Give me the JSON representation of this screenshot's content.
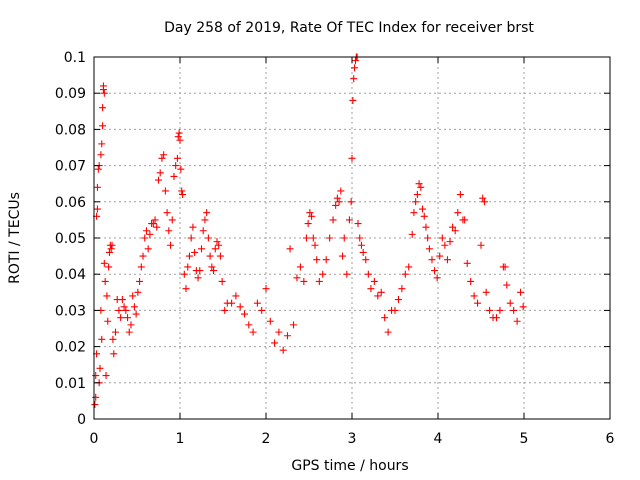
{
  "chart_data": {
    "type": "scatter",
    "title": "Day 258 of 2019, Rate Of TEC Index for receiver brst",
    "xlabel": "GPS time / hours",
    "ylabel": "ROTI / TECUs",
    "xlim": [
      0,
      6
    ],
    "ylim": [
      0,
      0.1
    ],
    "x_ticks": [
      "0",
      "1",
      "2",
      "3",
      "4",
      "5",
      "6"
    ],
    "y_ticks": [
      "0",
      "0.01",
      "0.02",
      "0.03",
      "0.04",
      "0.05",
      "0.06",
      "0.07",
      "0.08",
      "0.09",
      "0.1"
    ],
    "grid": true,
    "marker": "+",
    "color": "#ff0000",
    "series": [
      {
        "points": [
          [
            0.01,
            0.004
          ],
          [
            0.02,
            0.006
          ],
          [
            0.02,
            0.012
          ],
          [
            0.03,
            0.018
          ],
          [
            0.03,
            0.056
          ],
          [
            0.04,
            0.058
          ],
          [
            0.04,
            0.064
          ],
          [
            0.05,
            0.069
          ],
          [
            0.06,
            0.01
          ],
          [
            0.06,
            0.07
          ],
          [
            0.07,
            0.014
          ],
          [
            0.08,
            0.03
          ],
          [
            0.08,
            0.073
          ],
          [
            0.09,
            0.076
          ],
          [
            0.09,
            0.022
          ],
          [
            0.1,
            0.081
          ],
          [
            0.1,
            0.086
          ],
          [
            0.11,
            0.091
          ],
          [
            0.11,
            0.092
          ],
          [
            0.12,
            0.09
          ],
          [
            0.12,
            0.043
          ],
          [
            0.13,
            0.038
          ],
          [
            0.14,
            0.012
          ],
          [
            0.15,
            0.034
          ],
          [
            0.16,
            0.027
          ],
          [
            0.17,
            0.042
          ],
          [
            0.18,
            0.046
          ],
          [
            0.19,
            0.048
          ],
          [
            0.2,
            0.047
          ],
          [
            0.21,
            0.048
          ],
          [
            0.22,
            0.022
          ],
          [
            0.23,
            0.018
          ],
          [
            0.25,
            0.024
          ],
          [
            0.27,
            0.033
          ],
          [
            0.29,
            0.03
          ],
          [
            0.31,
            0.028
          ],
          [
            0.33,
            0.033
          ],
          [
            0.35,
            0.031
          ],
          [
            0.37,
            0.03
          ],
          [
            0.39,
            0.028
          ],
          [
            0.41,
            0.024
          ],
          [
            0.43,
            0.026
          ],
          [
            0.45,
            0.034
          ],
          [
            0.47,
            0.031
          ],
          [
            0.49,
            0.029
          ],
          [
            0.51,
            0.035
          ],
          [
            0.53,
            0.038
          ],
          [
            0.55,
            0.042
          ],
          [
            0.57,
            0.045
          ],
          [
            0.59,
            0.05
          ],
          [
            0.61,
            0.052
          ],
          [
            0.63,
            0.047
          ],
          [
            0.65,
            0.051
          ],
          [
            0.67,
            0.054
          ],
          [
            0.69,
            0.054
          ],
          [
            0.71,
            0.055
          ],
          [
            0.73,
            0.053
          ],
          [
            0.75,
            0.066
          ],
          [
            0.77,
            0.068
          ],
          [
            0.79,
            0.072
          ],
          [
            0.81,
            0.073
          ],
          [
            0.83,
            0.063
          ],
          [
            0.85,
            0.057
          ],
          [
            0.87,
            0.052
          ],
          [
            0.89,
            0.048
          ],
          [
            0.91,
            0.055
          ],
          [
            0.93,
            0.067
          ],
          [
            0.95,
            0.07
          ],
          [
            0.97,
            0.072
          ],
          [
            0.98,
            0.078
          ],
          [
            0.99,
            0.079
          ],
          [
            1.0,
            0.077
          ],
          [
            1.01,
            0.069
          ],
          [
            1.02,
            0.063
          ],
          [
            1.03,
            0.062
          ],
          [
            1.05,
            0.04
          ],
          [
            1.07,
            0.036
          ],
          [
            1.09,
            0.042
          ],
          [
            1.11,
            0.045
          ],
          [
            1.13,
            0.05
          ],
          [
            1.15,
            0.053
          ],
          [
            1.17,
            0.046
          ],
          [
            1.19,
            0.041
          ],
          [
            1.21,
            0.039
          ],
          [
            1.23,
            0.041
          ],
          [
            1.25,
            0.047
          ],
          [
            1.27,
            0.052
          ],
          [
            1.29,
            0.055
          ],
          [
            1.31,
            0.057
          ],
          [
            1.33,
            0.05
          ],
          [
            1.35,
            0.045
          ],
          [
            1.37,
            0.042
          ],
          [
            1.39,
            0.041
          ],
          [
            1.41,
            0.047
          ],
          [
            1.43,
            0.049
          ],
          [
            1.45,
            0.048
          ],
          [
            1.47,
            0.045
          ],
          [
            1.49,
            0.038
          ],
          [
            1.52,
            0.03
          ],
          [
            1.55,
            0.032
          ],
          [
            1.6,
            0.032
          ],
          [
            1.65,
            0.034
          ],
          [
            1.7,
            0.031
          ],
          [
            1.75,
            0.029
          ],
          [
            1.8,
            0.026
          ],
          [
            1.85,
            0.024
          ],
          [
            1.9,
            0.032
          ],
          [
            1.95,
            0.03
          ],
          [
            2.0,
            0.036
          ],
          [
            2.05,
            0.027
          ],
          [
            2.1,
            0.021
          ],
          [
            2.15,
            0.024
          ],
          [
            2.2,
            0.019
          ],
          [
            2.25,
            0.023
          ],
          [
            2.28,
            0.047
          ],
          [
            2.32,
            0.026
          ],
          [
            2.36,
            0.039
          ],
          [
            2.4,
            0.042
          ],
          [
            2.44,
            0.038
          ],
          [
            2.47,
            0.05
          ],
          [
            2.49,
            0.054
          ],
          [
            2.51,
            0.057
          ],
          [
            2.53,
            0.056
          ],
          [
            2.55,
            0.05
          ],
          [
            2.57,
            0.048
          ],
          [
            2.59,
            0.044
          ],
          [
            2.62,
            0.038
          ],
          [
            2.66,
            0.04
          ],
          [
            2.7,
            0.044
          ],
          [
            2.74,
            0.05
          ],
          [
            2.78,
            0.055
          ],
          [
            2.81,
            0.059
          ],
          [
            2.83,
            0.061
          ],
          [
            2.85,
            0.06
          ],
          [
            2.87,
            0.063
          ],
          [
            2.89,
            0.045
          ],
          [
            2.91,
            0.05
          ],
          [
            2.94,
            0.04
          ],
          [
            2.97,
            0.055
          ],
          [
            2.99,
            0.06
          ],
          [
            3.0,
            0.072
          ],
          [
            3.01,
            0.088
          ],
          [
            3.02,
            0.094
          ],
          [
            3.03,
            0.097
          ],
          [
            3.04,
            0.099
          ],
          [
            3.05,
            0.1
          ],
          [
            3.06,
            0.1
          ],
          [
            3.07,
            0.054
          ],
          [
            3.09,
            0.05
          ],
          [
            3.11,
            0.048
          ],
          [
            3.13,
            0.046
          ],
          [
            3.16,
            0.044
          ],
          [
            3.19,
            0.04
          ],
          [
            3.22,
            0.036
          ],
          [
            3.26,
            0.038
          ],
          [
            3.3,
            0.034
          ],
          [
            3.34,
            0.035
          ],
          [
            3.38,
            0.028
          ],
          [
            3.42,
            0.024
          ],
          [
            3.46,
            0.03
          ],
          [
            3.5,
            0.03
          ],
          [
            3.54,
            0.033
          ],
          [
            3.58,
            0.036
          ],
          [
            3.62,
            0.04
          ],
          [
            3.66,
            0.042
          ],
          [
            3.7,
            0.051
          ],
          [
            3.72,
            0.057
          ],
          [
            3.74,
            0.06
          ],
          [
            3.76,
            0.062
          ],
          [
            3.78,
            0.065
          ],
          [
            3.8,
            0.064
          ],
          [
            3.82,
            0.058
          ],
          [
            3.84,
            0.056
          ],
          [
            3.86,
            0.053
          ],
          [
            3.88,
            0.05
          ],
          [
            3.9,
            0.047
          ],
          [
            3.93,
            0.044
          ],
          [
            3.96,
            0.041
          ],
          [
            3.99,
            0.039
          ],
          [
            4.02,
            0.045
          ],
          [
            4.05,
            0.05
          ],
          [
            4.08,
            0.048
          ],
          [
            4.11,
            0.044
          ],
          [
            4.14,
            0.049
          ],
          [
            4.17,
            0.053
          ],
          [
            4.2,
            0.052
          ],
          [
            4.23,
            0.057
          ],
          [
            4.26,
            0.062
          ],
          [
            4.29,
            0.055
          ],
          [
            4.31,
            0.055
          ],
          [
            4.34,
            0.043
          ],
          [
            4.38,
            0.038
          ],
          [
            4.42,
            0.034
          ],
          [
            4.46,
            0.032
          ],
          [
            4.5,
            0.048
          ],
          [
            4.52,
            0.061
          ],
          [
            4.54,
            0.06
          ],
          [
            4.56,
            0.035
          ],
          [
            4.6,
            0.03
          ],
          [
            4.64,
            0.028
          ],
          [
            4.68,
            0.028
          ],
          [
            4.72,
            0.03
          ],
          [
            4.76,
            0.042
          ],
          [
            4.78,
            0.042
          ],
          [
            4.8,
            0.037
          ],
          [
            4.84,
            0.032
          ],
          [
            4.88,
            0.03
          ],
          [
            4.92,
            0.027
          ],
          [
            4.96,
            0.035
          ],
          [
            4.99,
            0.031
          ]
        ]
      }
    ]
  }
}
